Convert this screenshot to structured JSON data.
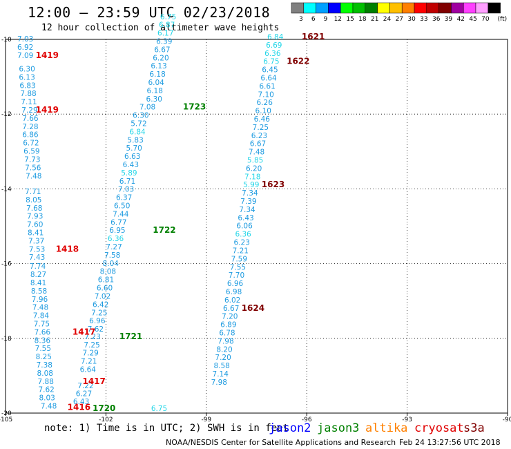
{
  "header": {
    "title": "12:00 — 23:59 UTC 02/23/2018",
    "subtitle": "12 hour collection of altimeter wave heights"
  },
  "legend": {
    "unit": "(ft)",
    "scale": [
      {
        "label": "3",
        "color": "#808080"
      },
      {
        "label": "6",
        "color": "#00ffff"
      },
      {
        "label": "9",
        "color": "#00a0ff"
      },
      {
        "label": "12",
        "color": "#0000ff"
      },
      {
        "label": "15",
        "color": "#00ff00"
      },
      {
        "label": "18",
        "color": "#00c000"
      },
      {
        "label": "21",
        "color": "#008000"
      },
      {
        "label": "24",
        "color": "#ffff00"
      },
      {
        "label": "27",
        "color": "#ffc000"
      },
      {
        "label": "30",
        "color": "#ff8000"
      },
      {
        "label": "33",
        "color": "#ff0000"
      },
      {
        "label": "36",
        "color": "#c00000"
      },
      {
        "label": "39",
        "color": "#800000"
      },
      {
        "label": "42",
        "color": "#a000a0"
      },
      {
        "label": "45",
        "color": "#ff40ff"
      },
      {
        "label": "70",
        "color": "#ffa0ff"
      },
      {
        "label": "",
        "color": "#000000"
      }
    ]
  },
  "axes": {
    "lon_ticks": [
      "-105",
      "-102",
      "-99",
      "-96",
      "-93",
      "-90"
    ],
    "lat_ticks": [
      "-10",
      "-12",
      "-14",
      "-16",
      "-18",
      "-20"
    ]
  },
  "colors": {
    "swh_label": "#1e9be0",
    "swh_light": "#22d6e8",
    "time_jason3": "#008000",
    "time_cryosat": "#e00000",
    "time_s3a": "#800000"
  },
  "tracks": [
    {
      "values": [
        {
          "v": "7.03",
          "lon": -104.65,
          "lat": -10.06
        },
        {
          "v": "6.92",
          "lon": -104.65,
          "lat": -10.28
        },
        {
          "v": "7.09",
          "lon": -104.65,
          "lat": -10.5
        },
        {
          "v": "6.30",
          "lon": -104.6,
          "lat": -10.86
        },
        {
          "v": "6.13",
          "lon": -104.6,
          "lat": -11.08
        },
        {
          "v": "6.83",
          "lon": -104.58,
          "lat": -11.3
        },
        {
          "v": "7.88",
          "lon": -104.56,
          "lat": -11.52
        },
        {
          "v": "7.11",
          "lon": -104.54,
          "lat": -11.74
        },
        {
          "v": "7.29",
          "lon": -104.52,
          "lat": -11.96
        },
        {
          "v": "7.66",
          "lon": -104.5,
          "lat": -12.18
        },
        {
          "v": "7.28",
          "lon": -104.5,
          "lat": -12.4
        },
        {
          "v": "6.86",
          "lon": -104.5,
          "lat": -12.62
        },
        {
          "v": "6.72",
          "lon": -104.48,
          "lat": -12.84
        },
        {
          "v": "6.59",
          "lon": -104.46,
          "lat": -13.06
        },
        {
          "v": "7.73",
          "lon": -104.44,
          "lat": -13.28
        },
        {
          "v": "7.56",
          "lon": -104.42,
          "lat": -13.5
        },
        {
          "v": "7.48",
          "lon": -104.4,
          "lat": -13.72
        },
        {
          "v": "7.71",
          "lon": -104.42,
          "lat": -14.14
        },
        {
          "v": "8.05",
          "lon": -104.4,
          "lat": -14.36
        },
        {
          "v": "7.68",
          "lon": -104.38,
          "lat": -14.58
        },
        {
          "v": "7.93",
          "lon": -104.36,
          "lat": -14.8
        },
        {
          "v": "7.60",
          "lon": -104.36,
          "lat": -15.02
        },
        {
          "v": "8.41",
          "lon": -104.34,
          "lat": -15.24
        },
        {
          "v": "7.37",
          "lon": -104.32,
          "lat": -15.46
        },
        {
          "v": "7.53",
          "lon": -104.3,
          "lat": -15.68
        },
        {
          "v": "7.43",
          "lon": -104.3,
          "lat": -15.9
        },
        {
          "v": "7.74",
          "lon": -104.28,
          "lat": -16.14
        },
        {
          "v": "8.27",
          "lon": -104.26,
          "lat": -16.36
        },
        {
          "v": "8.41",
          "lon": -104.26,
          "lat": -16.58
        },
        {
          "v": "8.58",
          "lon": -104.24,
          "lat": -16.8
        },
        {
          "v": "7.96",
          "lon": -104.22,
          "lat": -17.02
        },
        {
          "v": "7.48",
          "lon": -104.2,
          "lat": -17.24
        },
        {
          "v": "7.84",
          "lon": -104.18,
          "lat": -17.46
        },
        {
          "v": "7.75",
          "lon": -104.16,
          "lat": -17.68
        },
        {
          "v": "7.66",
          "lon": -104.14,
          "lat": -17.9
        },
        {
          "v": "8.36",
          "lon": -104.14,
          "lat": -18.12
        },
        {
          "v": "7.55",
          "lon": -104.12,
          "lat": -18.34
        },
        {
          "v": "8.25",
          "lon": -104.1,
          "lat": -18.56
        },
        {
          "v": "7.38",
          "lon": -104.08,
          "lat": -18.78
        },
        {
          "v": "8.08",
          "lon": -104.06,
          "lat": -19.0
        },
        {
          "v": "7.88",
          "lon": -104.04,
          "lat": -19.22
        },
        {
          "v": "7.62",
          "lon": -104.02,
          "lat": -19.44
        },
        {
          "v": "8.03",
          "lon": -104.0,
          "lat": -19.66
        },
        {
          "v": "7.48",
          "lon": -103.95,
          "lat": -19.88
        }
      ]
    },
    {
      "values": [
        {
          "v": "6.75",
          "lon": -100.65,
          "lat": -19.94
        },
        {
          "v": "6.43",
          "lon": -102.98,
          "lat": -19.76
        },
        {
          "v": "6.27",
          "lon": -102.9,
          "lat": -19.55
        },
        {
          "v": "7.22",
          "lon": -102.85,
          "lat": -19.33
        },
        {
          "v": "6.64",
          "lon": -102.78,
          "lat": -18.9
        },
        {
          "v": "7.21",
          "lon": -102.75,
          "lat": -18.68
        },
        {
          "v": "7.29",
          "lon": -102.7,
          "lat": -18.46
        },
        {
          "v": "7.25",
          "lon": -102.66,
          "lat": -18.24
        },
        {
          "v": "7.23",
          "lon": -102.64,
          "lat": -18.02
        },
        {
          "v": "7.62",
          "lon": -102.55,
          "lat": -17.82
        },
        {
          "v": "6.96",
          "lon": -102.5,
          "lat": -17.6
        },
        {
          "v": "7.25",
          "lon": -102.44,
          "lat": -17.38
        },
        {
          "v": "6.42",
          "lon": -102.4,
          "lat": -17.16
        },
        {
          "v": "7.02",
          "lon": -102.34,
          "lat": -16.94
        },
        {
          "v": "6.60",
          "lon": -102.28,
          "lat": -16.72
        },
        {
          "v": "6.81",
          "lon": -102.24,
          "lat": -16.5
        },
        {
          "v": "8.08",
          "lon": -102.18,
          "lat": -16.28
        },
        {
          "v": "8.04",
          "lon": -102.1,
          "lat": -16.06
        },
        {
          "v": "7.58",
          "lon": -102.05,
          "lat": -15.84
        },
        {
          "v": "7.27",
          "lon": -102.0,
          "lat": -15.62
        },
        {
          "v": "6.36",
          "lon": -101.95,
          "lat": -15.4
        },
        {
          "v": "6.95",
          "lon": -101.9,
          "lat": -15.18
        },
        {
          "v": "6.77",
          "lon": -101.86,
          "lat": -14.96
        },
        {
          "v": "7.44",
          "lon": -101.8,
          "lat": -14.74
        },
        {
          "v": "6.50",
          "lon": -101.76,
          "lat": -14.52
        },
        {
          "v": "6.37",
          "lon": -101.7,
          "lat": -14.3
        },
        {
          "v": "7.03",
          "lon": -101.64,
          "lat": -14.08
        },
        {
          "v": "6.71",
          "lon": -101.6,
          "lat": -13.86
        },
        {
          "v": "5.89",
          "lon": -101.55,
          "lat": -13.64
        },
        {
          "v": "6.43",
          "lon": -101.5,
          "lat": -13.42
        },
        {
          "v": "6.63",
          "lon": -101.45,
          "lat": -13.2
        },
        {
          "v": "5.70",
          "lon": -101.4,
          "lat": -12.98
        },
        {
          "v": "5.83",
          "lon": -101.36,
          "lat": -12.76
        },
        {
          "v": "6.84",
          "lon": -101.3,
          "lat": -12.54
        },
        {
          "v": "5.72",
          "lon": -101.26,
          "lat": -12.32
        },
        {
          "v": "6.30",
          "lon": -101.2,
          "lat": -12.1
        },
        {
          "v": "7.08",
          "lon": -101.0,
          "lat": -11.88
        },
        {
          "v": "6.30",
          "lon": -100.8,
          "lat": -11.66
        },
        {
          "v": "6.18",
          "lon": -100.78,
          "lat": -11.44
        },
        {
          "v": "6.04",
          "lon": -100.74,
          "lat": -11.22
        },
        {
          "v": "6.18",
          "lon": -100.7,
          "lat": -11.0
        },
        {
          "v": "6.13",
          "lon": -100.66,
          "lat": -10.78
        },
        {
          "v": "6.20",
          "lon": -100.6,
          "lat": -10.56
        },
        {
          "v": "6.67",
          "lon": -100.56,
          "lat": -10.34
        },
        {
          "v": "6.39",
          "lon": -100.5,
          "lat": -10.12
        },
        {
          "v": "6.17",
          "lon": -100.46,
          "lat": -9.9
        },
        {
          "v": "6.87",
          "lon": -100.42,
          "lat": -9.68
        },
        {
          "v": "6.75",
          "lon": -100.38,
          "lat": -9.46
        }
      ]
    },
    {
      "values": [
        {
          "v": "6.84",
          "lon": -97.18,
          "lat": -10.0
        },
        {
          "v": "6.69",
          "lon": -97.22,
          "lat": -10.22
        },
        {
          "v": "6.36",
          "lon": -97.26,
          "lat": -10.44
        },
        {
          "v": "6.75",
          "lon": -97.3,
          "lat": -10.66
        },
        {
          "v": "6.45",
          "lon": -97.34,
          "lat": -10.88
        },
        {
          "v": "6.64",
          "lon": -97.38,
          "lat": -11.1
        },
        {
          "v": "6.61",
          "lon": -97.42,
          "lat": -11.32
        },
        {
          "v": "7.10",
          "lon": -97.46,
          "lat": -11.54
        },
        {
          "v": "6.26",
          "lon": -97.5,
          "lat": -11.76
        },
        {
          "v": "6.10",
          "lon": -97.54,
          "lat": -11.98
        },
        {
          "v": "6.46",
          "lon": -97.58,
          "lat": -12.2
        },
        {
          "v": "7.25",
          "lon": -97.62,
          "lat": -12.42
        },
        {
          "v": "6.23",
          "lon": -97.66,
          "lat": -12.64
        },
        {
          "v": "6.67",
          "lon": -97.7,
          "lat": -12.86
        },
        {
          "v": "7.48",
          "lon": -97.74,
          "lat": -13.08
        },
        {
          "v": "5.85",
          "lon": -97.78,
          "lat": -13.3
        },
        {
          "v": "6.20",
          "lon": -97.82,
          "lat": -13.52
        },
        {
          "v": "7.18",
          "lon": -97.86,
          "lat": -13.74
        },
        {
          "v": "5.99",
          "lon": -97.9,
          "lat": -13.96
        },
        {
          "v": "7.34",
          "lon": -97.94,
          "lat": -14.18
        },
        {
          "v": "7.39",
          "lon": -97.98,
          "lat": -14.4
        },
        {
          "v": "7.34",
          "lon": -98.02,
          "lat": -14.62
        },
        {
          "v": "6.43",
          "lon": -98.06,
          "lat": -14.84
        },
        {
          "v": "6.06",
          "lon": -98.1,
          "lat": -15.06
        },
        {
          "v": "6.36",
          "lon": -98.14,
          "lat": -15.28
        },
        {
          "v": "6.23",
          "lon": -98.18,
          "lat": -15.5
        },
        {
          "v": "7.21",
          "lon": -98.22,
          "lat": -15.72
        },
        {
          "v": "7.59",
          "lon": -98.26,
          "lat": -15.94
        },
        {
          "v": "7.55",
          "lon": -98.3,
          "lat": -16.16
        },
        {
          "v": "7.70",
          "lon": -98.34,
          "lat": -16.38
        },
        {
          "v": "6.96",
          "lon": -98.38,
          "lat": -16.6
        },
        {
          "v": "6.98",
          "lon": -98.42,
          "lat": -16.82
        },
        {
          "v": "6.02",
          "lon": -98.46,
          "lat": -17.04
        },
        {
          "v": "6.67",
          "lon": -98.5,
          "lat": -17.26
        },
        {
          "v": "7.20",
          "lon": -98.54,
          "lat": -17.48
        },
        {
          "v": "6.89",
          "lon": -98.58,
          "lat": -17.7
        },
        {
          "v": "6.78",
          "lon": -98.62,
          "lat": -17.92
        },
        {
          "v": "7.98",
          "lon": -98.66,
          "lat": -18.14
        },
        {
          "v": "8.20",
          "lon": -98.7,
          "lat": -18.36
        },
        {
          "v": "7.20",
          "lon": -98.74,
          "lat": -18.58
        },
        {
          "v": "8.58",
          "lon": -98.78,
          "lat": -18.8
        },
        {
          "v": "7.14",
          "lon": -98.82,
          "lat": -19.02
        },
        {
          "v": "7.98",
          "lon": -98.86,
          "lat": -19.24
        }
      ]
    }
  ],
  "time_labels": [
    {
      "t": "1419",
      "lon": -104.1,
      "lat": -10.5,
      "sat": "cryosat"
    },
    {
      "t": "1419",
      "lon": -104.1,
      "lat": -11.96,
      "sat": "cryosat"
    },
    {
      "t": "1418",
      "lon": -103.5,
      "lat": -15.68,
      "sat": "cryosat"
    },
    {
      "t": "1417",
      "lon": -103.0,
      "lat": -17.9,
      "sat": "cryosat"
    },
    {
      "t": "1417",
      "lon": -102.7,
      "lat": -19.22,
      "sat": "cryosat"
    },
    {
      "t": "1416",
      "lon": -103.15,
      "lat": -19.92,
      "sat": "cryosat"
    },
    {
      "t": "1723",
      "lon": -99.7,
      "lat": -11.88,
      "sat": "jason3"
    },
    {
      "t": "1722",
      "lon": -100.6,
      "lat": -15.18,
      "sat": "jason3"
    },
    {
      "t": "1721",
      "lon": -101.6,
      "lat": -18.02,
      "sat": "jason3"
    },
    {
      "t": "1720",
      "lon": -102.4,
      "lat": -19.94,
      "sat": "jason3"
    },
    {
      "t": "1621",
      "lon": -96.15,
      "lat": -10.0,
      "sat": "s3a"
    },
    {
      "t": "1622",
      "lon": -96.6,
      "lat": -10.66,
      "sat": "s3a"
    },
    {
      "t": "1623",
      "lon": -97.35,
      "lat": -13.96,
      "sat": "s3a"
    },
    {
      "t": "1624",
      "lon": -97.95,
      "lat": -17.26,
      "sat": "s3a"
    }
  ],
  "footer": {
    "note": "note:  1) Time is in UTC; 2) SWH is in feet",
    "satellites": [
      {
        "name": "jason2",
        "color": "#0000ff"
      },
      {
        "name": "jason3",
        "color": "#008000"
      },
      {
        "name": "altika",
        "color": "#ff8000"
      },
      {
        "name": "cryosat",
        "color": "#e00000"
      },
      {
        "name": "s3a",
        "color": "#800000"
      }
    ],
    "credit": "NOAA/NESDIS Center for Satellite Applications and Research",
    "timestamp": "Feb 24 13:27:56 UTC 2018"
  }
}
